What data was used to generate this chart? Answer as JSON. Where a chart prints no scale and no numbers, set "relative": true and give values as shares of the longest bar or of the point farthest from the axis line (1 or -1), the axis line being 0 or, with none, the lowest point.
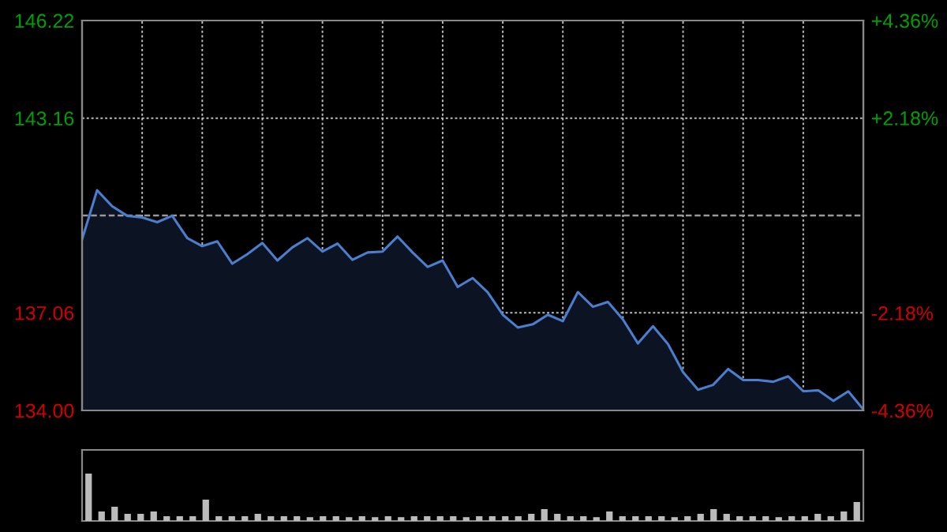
{
  "chart_data": [
    {
      "type": "area",
      "grid": true,
      "categories": [
        null,
        null,
        null,
        null,
        null,
        null,
        null,
        null,
        null,
        null,
        null,
        null,
        null,
        null,
        null,
        null,
        null,
        null,
        null,
        null,
        null,
        null,
        null,
        null,
        null,
        null,
        null,
        null,
        null,
        null,
        null,
        null,
        null,
        null,
        null,
        null,
        null,
        null,
        null,
        null,
        null,
        null,
        null,
        null,
        null,
        null,
        null,
        null,
        null,
        null,
        null,
        null,
        null
      ],
      "series": [
        {
          "color": "#4a7fd0",
          "values": [
            139.36,
            140.9,
            140.4,
            140.1,
            140.05,
            139.9,
            140.1,
            139.4,
            139.15,
            139.3,
            138.6,
            138.9,
            139.25,
            138.7,
            139.11,
            139.4,
            138.98,
            139.23,
            138.72,
            138.95,
            138.98,
            139.45,
            138.95,
            138.5,
            138.7,
            137.87,
            138.15,
            137.7,
            137.0,
            136.6,
            136.7,
            137.0,
            136.8,
            137.71,
            137.25,
            137.4,
            136.85,
            136.1,
            136.64,
            136.08,
            135.2,
            134.65,
            134.8,
            135.3,
            134.95,
            134.95,
            134.9,
            135.07,
            134.6,
            134.63,
            134.3,
            134.6,
            134.03
          ]
        }
      ],
      "ylim": [
        134.0,
        146.22
      ],
      "yticks": [
        {
          "value": 134.0,
          "label": "134.00"
        },
        137.06,
        143.16,
        146.22
      ],
      "y2lim": [
        -4.36,
        4.36
      ],
      "y2ticks": [
        {
          "value": -4.36,
          "label": "-4.36%"
        },
        {
          "value": -2.18,
          "label": "-2.18%"
        },
        {
          "value": 2.18,
          "label": "+2.18%"
        },
        {
          "value": 4.36,
          "label": "+4.36%"
        }
      ],
      "ref_lines": [
        {
          "axis": "y",
          "value": 140.11
        }
      ]
    },
    {
      "type": "bar",
      "relative": true,
      "categories": [
        null,
        null,
        null,
        null,
        null,
        null,
        null,
        null,
        null,
        null,
        null,
        null,
        null,
        null,
        null,
        null,
        null,
        null,
        null,
        null,
        null,
        null,
        null,
        null,
        null,
        null,
        null,
        null,
        null,
        null,
        null,
        null,
        null,
        null,
        null,
        null,
        null,
        null,
        null,
        null,
        null,
        null,
        null,
        null,
        null,
        null,
        null,
        null,
        null,
        null,
        null,
        null,
        null,
        null,
        null,
        null,
        null,
        null,
        null,
        null
      ],
      "series": [
        {
          "color": "#bbbbbb",
          "values": [
            1.0,
            0.2,
            0.3,
            0.15,
            0.15,
            0.2,
            0.1,
            0.1,
            0.1,
            0.45,
            0.1,
            0.1,
            0.1,
            0.15,
            0.1,
            0.1,
            0.1,
            0.08,
            0.1,
            0.1,
            0.08,
            0.1,
            0.08,
            0.1,
            0.08,
            0.1,
            0.1,
            0.1,
            0.1,
            0.08,
            0.1,
            0.1,
            0.1,
            0.1,
            0.15,
            0.25,
            0.15,
            0.1,
            0.1,
            0.08,
            0.2,
            0.1,
            0.1,
            0.1,
            0.1,
            0.08,
            0.1,
            0.15,
            0.25,
            0.15,
            0.1,
            0.1,
            0.1,
            0.08,
            0.1,
            0.1,
            0.15,
            0.1,
            0.2,
            0.4
          ]
        }
      ]
    }
  ]
}
